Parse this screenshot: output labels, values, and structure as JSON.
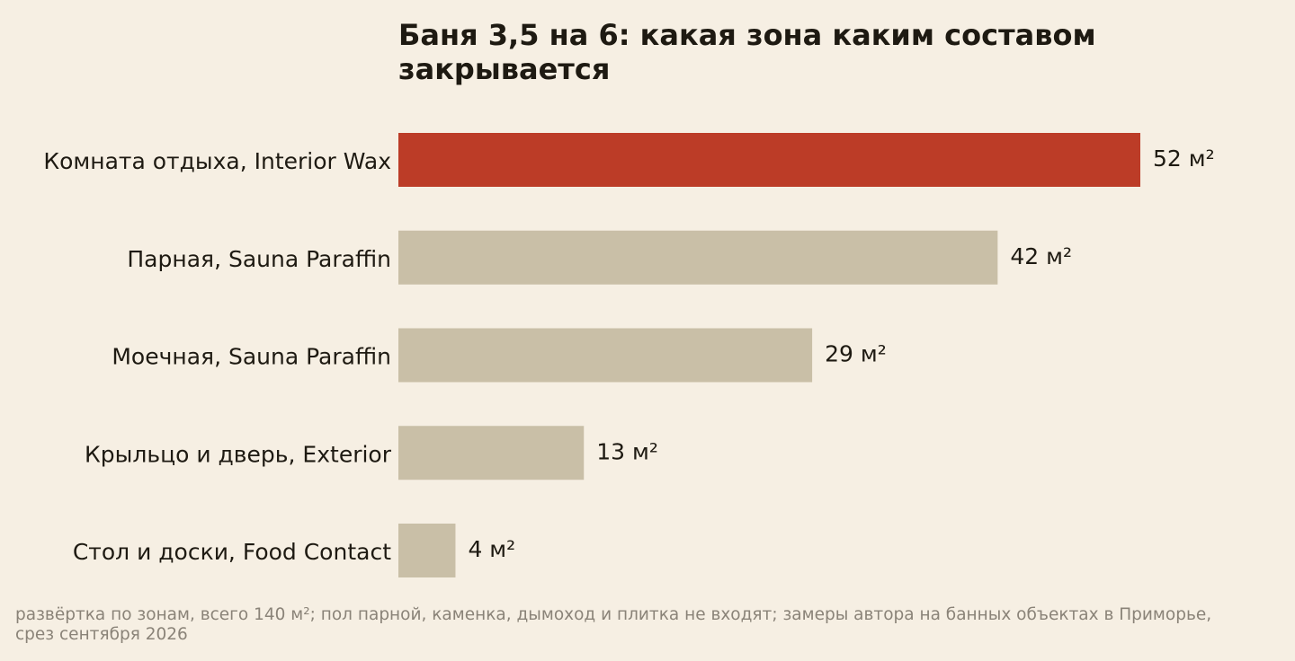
{
  "chart_data": {
    "type": "bar",
    "orientation": "horizontal",
    "title": "Баня 3,5 на 6: какая зона каким составом закрывается",
    "categories": [
      "Комната отдыха, Interior Wax",
      "Парная, Sauna Paraffin",
      "Моечная, Sauna Paraffin",
      "Крыльцо и дверь, Exterior",
      "Стол и доски, Food Contact"
    ],
    "values": [
      52,
      42,
      29,
      13,
      4
    ],
    "value_labels": [
      "52 м²",
      "42 м²",
      "29 м²",
      "13 м²",
      "4 м²"
    ],
    "colors": [
      "#bc3c27",
      "#c9bfa7",
      "#c9bfa7",
      "#c9bfa7",
      "#c9bfa7"
    ],
    "note": "развёртка по зонам, всего 140 м²; пол парной, каменка, дымоход и плитка не входят; замеры автора на банных объектах в Приморье, срез сентября 2026"
  }
}
